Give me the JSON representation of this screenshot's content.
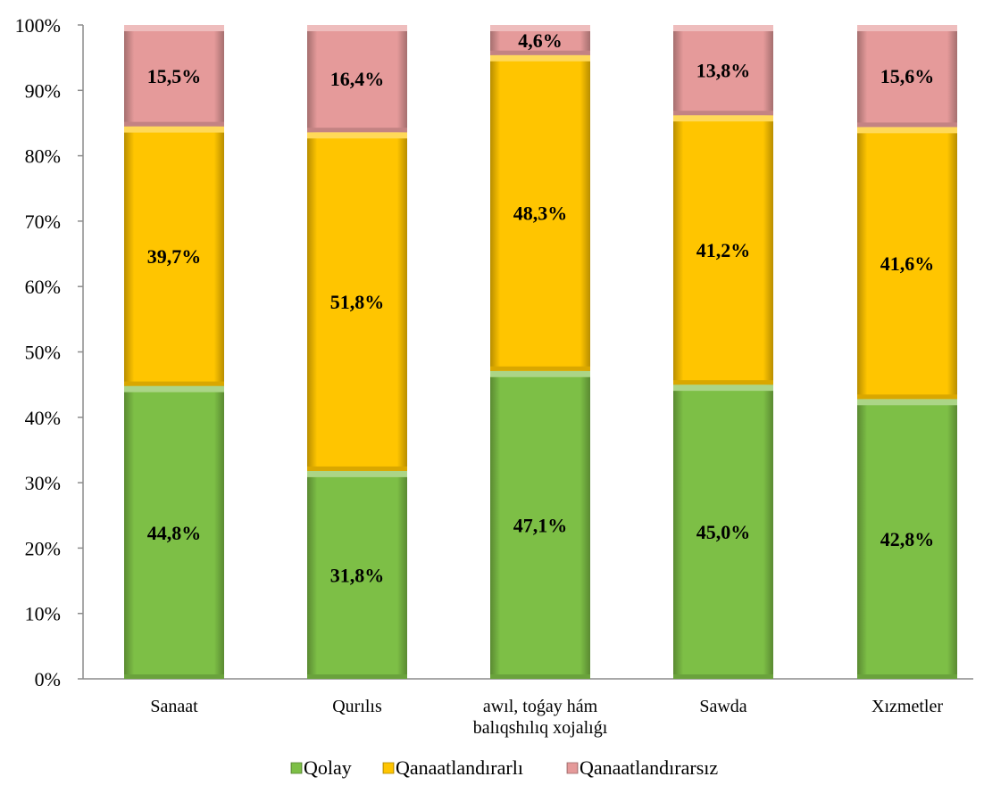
{
  "chart_data": {
    "type": "bar",
    "stacked": true,
    "percent_stacked": true,
    "categories": [
      [
        "Sanaat"
      ],
      [
        "Qurılıs"
      ],
      [
        "awıl, toǵay hám",
        "balıqshılıq xojalıǵı"
      ],
      [
        "Sawda"
      ],
      [
        "Xızmetler"
      ]
    ],
    "series": [
      {
        "name": "Qolay",
        "color": "#7DBF46",
        "values": [
          44.8,
          31.8,
          47.1,
          45.0,
          42.8
        ],
        "labels": [
          "44,8%",
          "31,8%",
          "47,1%",
          "45,0%",
          "42,8%"
        ]
      },
      {
        "name": "Qanaatlandırarlı",
        "color": "#FFC500",
        "values": [
          39.7,
          51.8,
          48.3,
          41.2,
          41.6
        ],
        "labels": [
          "39,7%",
          "51,8%",
          "48,3%",
          "41,2%",
          "41,6%"
        ]
      },
      {
        "name": "Qanaatlandırarsız",
        "color": "#E59A9A",
        "values": [
          15.5,
          16.4,
          4.6,
          13.8,
          15.6
        ],
        "labels": [
          "15,5%",
          "16,4%",
          "4,6%",
          "13,8%",
          "15,6%"
        ]
      }
    ],
    "y_ticks": [
      "0%",
      "10%",
      "20%",
      "30%",
      "40%",
      "50%",
      "60%",
      "70%",
      "80%",
      "90%",
      "100%"
    ],
    "ylim": [
      0,
      100
    ],
    "grid": false,
    "legend_position": "bottom"
  }
}
